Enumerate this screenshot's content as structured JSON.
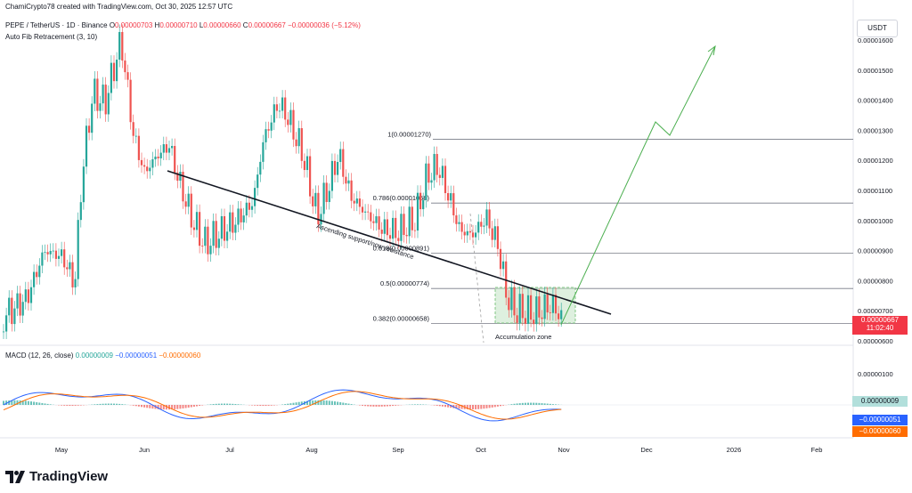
{
  "header": {
    "creator_line": "ChamiCrypto78 created with TradingView.com, Oct 30, 2025 12:57 UTC",
    "symbol": "PEPE / TetherUS · 1D · Binance",
    "ohlc": {
      "o_label": "O",
      "o": "0.00000703",
      "h_label": "H",
      "h": "0.00000710",
      "l_label": "L",
      "l": "0.00000660",
      "c_label": "C",
      "c": "0.00000667",
      "change": "−0.00000036 (−5.12%)"
    },
    "fib_indicator": "Auto Fib Retracement (3, 10)"
  },
  "currency_button": "USDT",
  "price_scale": {
    "labels": [
      "0.00001600",
      "0.00001500",
      "0.00001400",
      "0.00001300",
      "0.00001200",
      "0.00001100",
      "0.00001000",
      "0.00000900",
      "0.00000800",
      "0.00000700",
      "0.00000600"
    ],
    "current_price": "0.00000667",
    "countdown": "11:02:40"
  },
  "macd": {
    "name": "MACD (12, 26, close)",
    "hist_value": "0.00000009",
    "macd_value": "−0.00000051",
    "signal_value": "−0.00000060",
    "scale_label": "0.00000100",
    "colors": {
      "macd": "#2962ff",
      "signal": "#ff6d00",
      "hist_up": "#26a69a",
      "hist_down": "#ef5350"
    }
  },
  "time_axis": [
    "May",
    "Jun",
    "Jul",
    "Aug",
    "Sep",
    "Oct",
    "Nov",
    "Dec",
    "2026",
    "Feb"
  ],
  "annotations": {
    "trendline": "Ascending support/now resistance",
    "box": "Accumulation zone"
  },
  "brand": "TradingView",
  "chart_data": {
    "type": "candlestick",
    "fib_levels": [
      {
        "label": "1(0.00001270)",
        "value": 1.27e-05
      },
      {
        "label": "0.786(0.00001058)",
        "value": 1.058e-05
      },
      {
        "label": "0.618(0.00000891)",
        "value": 8.91e-06
      },
      {
        "label": "0.5(0.00000774)",
        "value": 7.74e-06
      },
      {
        "label": "0.382(0.00000658)",
        "value": 6.58e-06
      }
    ],
    "ylim": [
      5.8e-06,
      1.68e-05
    ],
    "colors": {
      "up": "#26a69a",
      "down": "#ef5350",
      "trend": "#000000",
      "projection": "#4caf50",
      "box": "#c8e6c9"
    }
  }
}
